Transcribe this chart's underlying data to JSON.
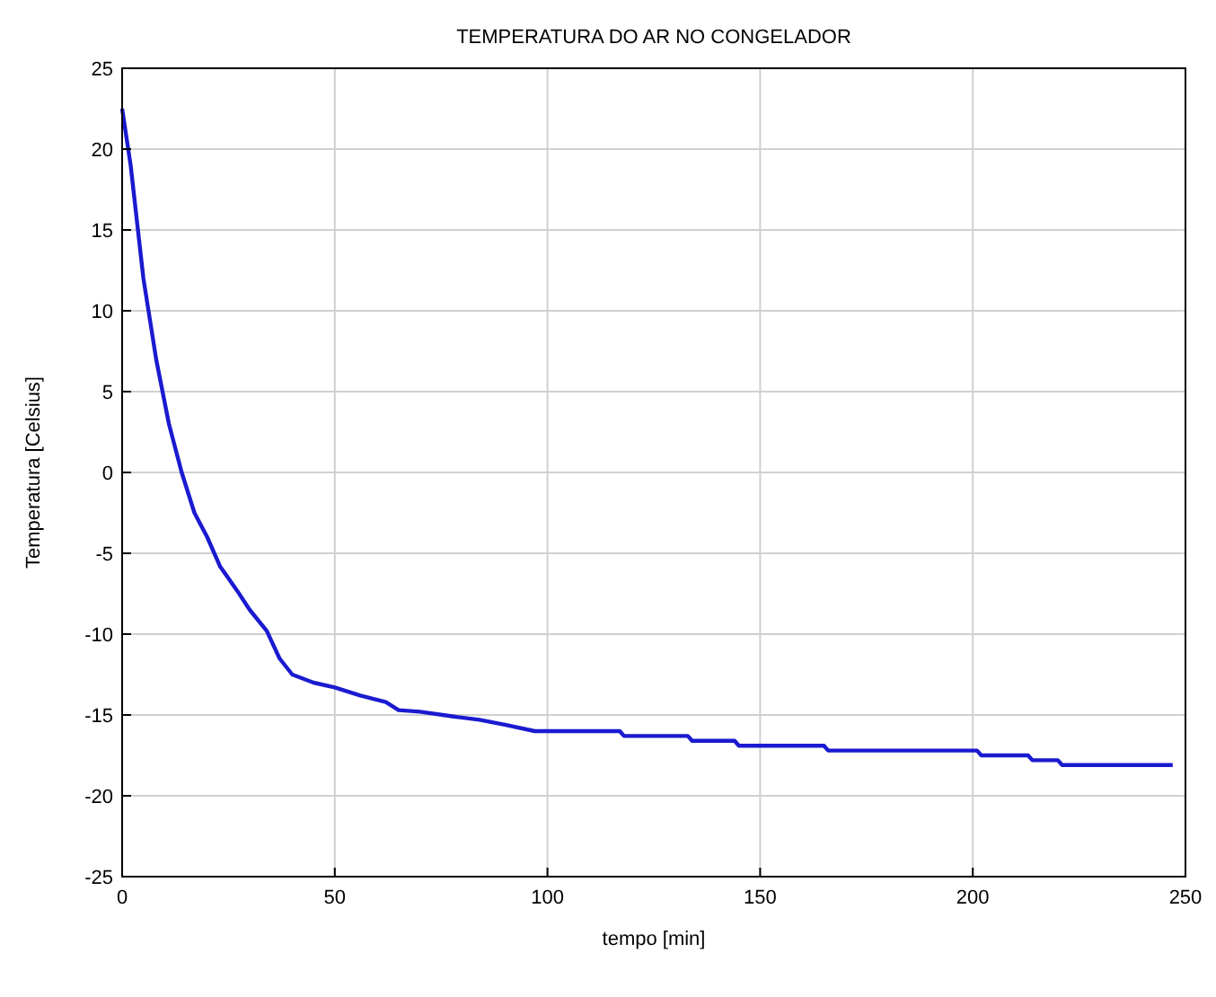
{
  "chart_data": {
    "type": "line",
    "title": "TEMPERATURA DO AR NO CONGELADOR",
    "xlabel": "tempo [min]",
    "ylabel": "Temperatura [Celsius]",
    "x": [
      0,
      2,
      5,
      8,
      11,
      14,
      17,
      20,
      23,
      27,
      30,
      34,
      37,
      40,
      45,
      50,
      56,
      62,
      65,
      70,
      78,
      84,
      90,
      97,
      117,
      118,
      133,
      134,
      144,
      145,
      165,
      166,
      201,
      202,
      213,
      214,
      220,
      221,
      247
    ],
    "series": [
      {
        "color": "#1a1ad0",
        "values": [
          22.5,
          19,
          12,
          7,
          3,
          0,
          -2.5,
          -4,
          -5.8,
          -7.3,
          -8.5,
          -9.8,
          -11.5,
          -12.5,
          -13,
          -13.3,
          -13.8,
          -14.2,
          -14.7,
          -14.8,
          -15.1,
          -15.3,
          -15.6,
          -16,
          -16,
          -16.3,
          -16.3,
          -16.6,
          -16.6,
          -16.9,
          -16.9,
          -17.2,
          -17.2,
          -17.5,
          -17.5,
          -17.8,
          -17.8,
          -18.1,
          -18.1
        ]
      }
    ],
    "xlim": [
      0,
      250
    ],
    "ylim": [
      -25,
      25
    ],
    "xticks": [
      0,
      50,
      100,
      150,
      200,
      250
    ],
    "yticks": [
      -25,
      -20,
      -15,
      -10,
      -5,
      0,
      5,
      10,
      15,
      20,
      25
    ],
    "grid": true,
    "line_style": "solid"
  }
}
